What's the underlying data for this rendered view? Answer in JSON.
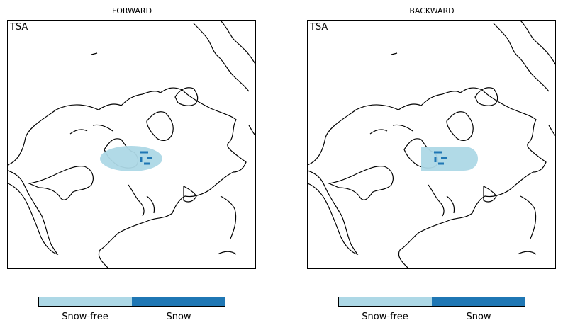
{
  "panels": [
    {
      "title": "FORWARD",
      "region_label": "TSA",
      "colorbar": {
        "categories": [
          "Snow-free",
          "Snow"
        ],
        "colors": [
          "#add8e6",
          "#1f77b4"
        ]
      }
    },
    {
      "title": "BACKWARD",
      "region_label": "TSA",
      "colorbar": {
        "categories": [
          "Snow-free",
          "Snow"
        ],
        "colors": [
          "#add8e6",
          "#1f77b4"
        ]
      }
    }
  ]
}
